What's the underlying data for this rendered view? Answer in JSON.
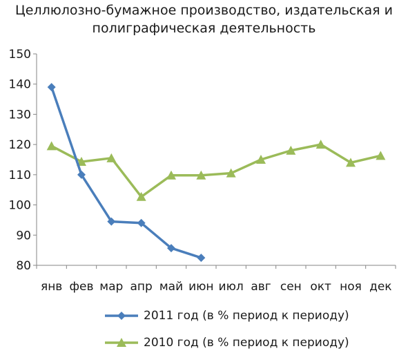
{
  "chart_data": {
    "type": "line",
    "title_lines": [
      "Целлюлозно-бумажное производство, издательская и",
      "полиграфическая деятельность"
    ],
    "categories": [
      "янв",
      "фев",
      "мар",
      "апр",
      "май",
      "июн",
      "июл",
      "авг",
      "сен",
      "окт",
      "ноя",
      "дек"
    ],
    "ylim": [
      80,
      150
    ],
    "yticks": [
      80,
      90,
      100,
      110,
      120,
      130,
      140,
      150
    ],
    "grid": false,
    "legend_position": "bottom",
    "series": [
      {
        "name": "2011 год (в % период к периоду)",
        "marker": "diamond",
        "color": "#4a7ebb",
        "values": [
          139,
          110,
          94.5,
          94,
          85.7,
          82.5,
          null,
          null,
          null,
          null,
          null,
          null
        ]
      },
      {
        "name": "2010 год (в % период к периоду)",
        "marker": "triangle",
        "color": "#9bbb59",
        "values": [
          119.5,
          114.3,
          115.5,
          102.7,
          109.8,
          109.8,
          110.5,
          115,
          118,
          120,
          114,
          116.3
        ]
      }
    ]
  }
}
